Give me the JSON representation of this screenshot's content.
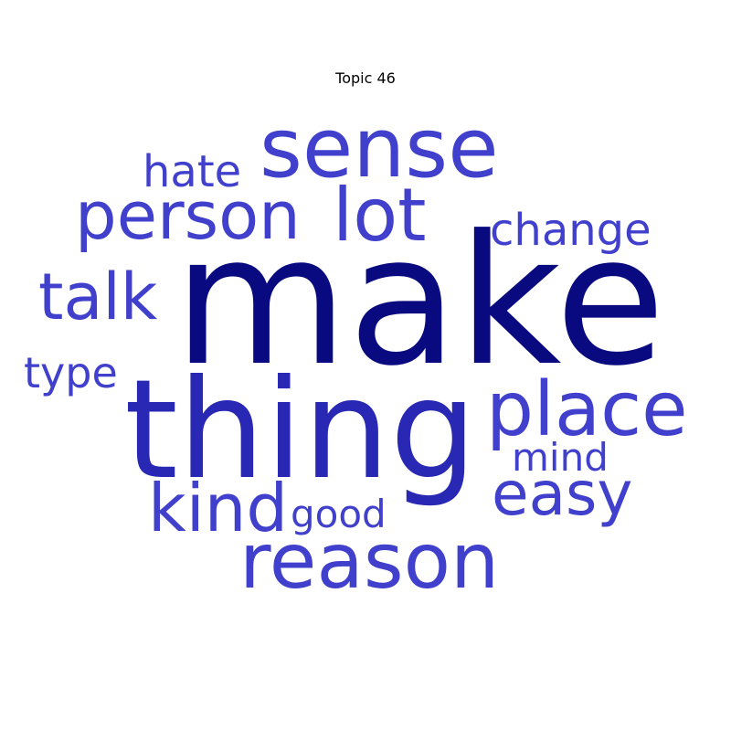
{
  "title": "Topic 46",
  "words": {
    "make": {
      "text": "make",
      "color": "#0a0a80"
    },
    "thing": {
      "text": "thing",
      "color": "#2828b4"
    },
    "reason": {
      "text": "reason",
      "color": "#4040cc"
    },
    "sense": {
      "text": "sense",
      "color": "#4040cc"
    },
    "person": {
      "text": "person",
      "color": "#4040cc"
    },
    "place": {
      "text": "place",
      "color": "#4040cc"
    },
    "lot": {
      "text": "lot",
      "color": "#4040cc"
    },
    "talk": {
      "text": "talk",
      "color": "#4040cc"
    },
    "kind": {
      "text": "kind",
      "color": "#4040cc"
    },
    "easy": {
      "text": "easy",
      "color": "#4040cc"
    },
    "hate": {
      "text": "hate",
      "color": "#4040cc"
    },
    "change": {
      "text": "change",
      "color": "#4040cc"
    },
    "type": {
      "text": "type",
      "color": "#4040cc"
    },
    "mind": {
      "text": "mind",
      "color": "#4040cc"
    },
    "good": {
      "text": "good",
      "color": "#4040cc"
    }
  }
}
